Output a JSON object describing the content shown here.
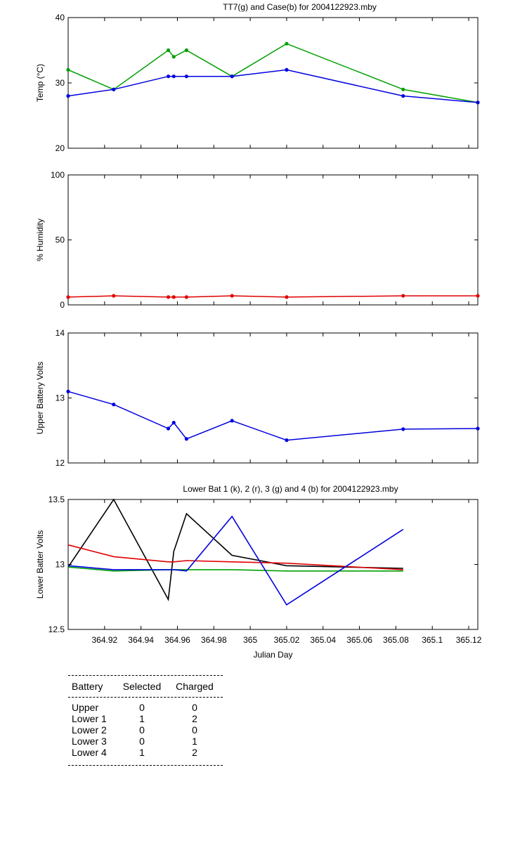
{
  "chart_data": [
    {
      "type": "line",
      "title": "TT7(g) and Case(b) for 2004122923.mby",
      "xlabel": "",
      "ylabel": "Temp  (°C)",
      "xlim": [
        364.9,
        365.125
      ],
      "ylim": [
        20,
        40
      ],
      "yticks": [
        20,
        30,
        40
      ],
      "grid": false,
      "series": [
        {
          "color": "#00a000",
          "marker": true,
          "x": [
            364.9,
            364.925,
            364.955,
            364.958,
            364.965,
            364.99,
            365.02,
            365.084,
            365.125
          ],
          "values": [
            32,
            29,
            35,
            34,
            35,
            31,
            36,
            29,
            27
          ]
        },
        {
          "color": "#0000e0",
          "marker": true,
          "x": [
            364.9,
            364.925,
            364.955,
            364.958,
            364.965,
            364.99,
            365.02,
            365.084,
            365.125
          ],
          "values": [
            28,
            29,
            31,
            31,
            31,
            31,
            32,
            28,
            27
          ]
        }
      ]
    },
    {
      "type": "line",
      "title": "",
      "xlabel": "",
      "ylabel": "% Humidity",
      "xlim": [
        364.9,
        365.125
      ],
      "ylim": [
        0,
        100
      ],
      "yticks": [
        0,
        50,
        100
      ],
      "grid": false,
      "series": [
        {
          "color": "#e00000",
          "marker": true,
          "x": [
            364.9,
            364.925,
            364.955,
            364.958,
            364.965,
            364.99,
            365.02,
            365.084,
            365.125
          ],
          "values": [
            6,
            7,
            6,
            6,
            6,
            7,
            6,
            7,
            7
          ]
        }
      ]
    },
    {
      "type": "line",
      "title": "",
      "xlabel": "",
      "ylabel": "Upper Battery Volts",
      "xlim": [
        364.9,
        365.125
      ],
      "ylim": [
        12,
        14
      ],
      "yticks": [
        12,
        13,
        14
      ],
      "grid": false,
      "series": [
        {
          "color": "#0000e0",
          "marker": true,
          "x": [
            364.9,
            364.925,
            364.955,
            364.958,
            364.965,
            364.99,
            365.02,
            365.084,
            365.125
          ],
          "values": [
            13.1,
            12.9,
            12.53,
            12.62,
            12.37,
            12.65,
            12.35,
            12.52,
            12.53
          ]
        }
      ]
    },
    {
      "type": "line",
      "title": "Lower Bat 1 (k), 2 (r), 3 (g) and 4 (b) for 2004122923.mby",
      "xlabel": "Julian Day",
      "ylabel": "Lower Batter Volts",
      "xlim": [
        364.9,
        365.125
      ],
      "ylim": [
        12.5,
        13.5
      ],
      "yticks": [
        12.5,
        13,
        13.5
      ],
      "xticks": [
        364.92,
        364.94,
        364.96,
        364.98,
        365,
        365.02,
        365.04,
        365.06,
        365.08,
        365.1,
        365.12
      ],
      "xticklabels": [
        "364.92",
        "364.94",
        "364.96",
        "364.98",
        "365",
        "365.02",
        "365.04",
        "365.06",
        "365.08",
        "365.1",
        "365.12"
      ],
      "grid": false,
      "series": [
        {
          "color": "#000000",
          "marker": false,
          "x": [
            364.9,
            364.925,
            364.955,
            364.958,
            364.965,
            364.99,
            365.02,
            365.084
          ],
          "values": [
            12.98,
            13.5,
            12.73,
            13.1,
            13.39,
            13.07,
            12.99,
            12.97
          ]
        },
        {
          "color": "#e00000",
          "marker": false,
          "x": [
            364.9,
            364.925,
            364.955,
            364.958,
            364.965,
            364.99,
            365.02,
            365.084
          ],
          "values": [
            13.15,
            13.06,
            13.02,
            13.02,
            13.03,
            13.02,
            13.01,
            12.96
          ]
        },
        {
          "color": "#00a000",
          "marker": false,
          "x": [
            364.9,
            364.925,
            364.955,
            364.958,
            364.965,
            364.99,
            365.02,
            365.084
          ],
          "values": [
            12.98,
            12.95,
            12.96,
            12.96,
            12.96,
            12.96,
            12.95,
            12.95
          ]
        },
        {
          "color": "#0000e0",
          "marker": false,
          "x": [
            364.9,
            364.925,
            364.955,
            364.958,
            364.965,
            364.99,
            365.02,
            365.084
          ],
          "values": [
            12.99,
            12.96,
            12.96,
            12.96,
            12.95,
            13.37,
            12.69,
            13.27
          ]
        }
      ]
    }
  ],
  "battery_table": {
    "headers": [
      "Battery",
      "Selected",
      "Charged"
    ],
    "rows": [
      [
        "Upper",
        "0",
        "0"
      ],
      [
        "Lower 1",
        "1",
        "2"
      ],
      [
        "Lower 2",
        "0",
        "0"
      ],
      [
        "Lower 3",
        "0",
        "1"
      ],
      [
        "Lower 4",
        "1",
        "2"
      ]
    ]
  }
}
